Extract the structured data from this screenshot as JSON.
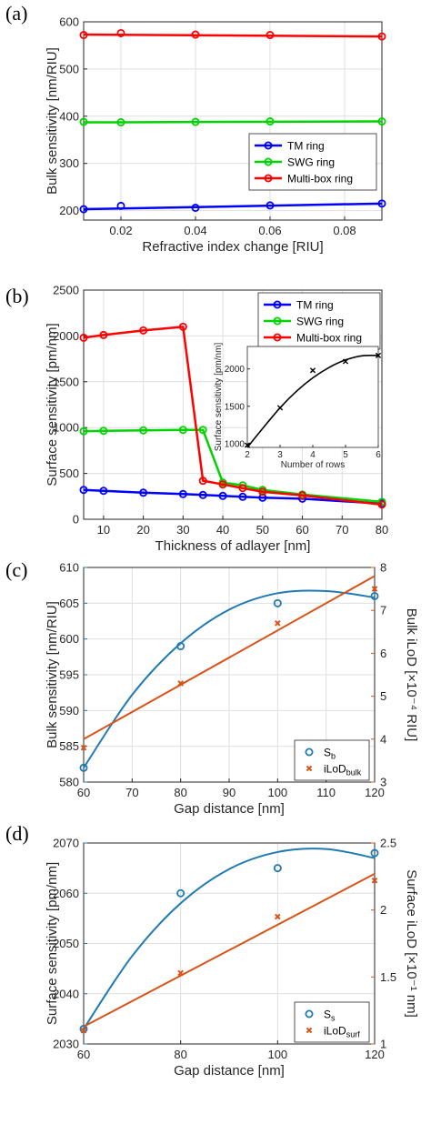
{
  "figure": {
    "panels": [
      "(a)",
      "(b)",
      "(c)",
      "(d)"
    ]
  },
  "chart_data": [
    {
      "id": "a",
      "type": "line",
      "xlabel": "Refractive index change [RIU]",
      "ylabel": "Bulk sensitivity [nm/RIU]",
      "xlim": [
        0.01,
        0.09
      ],
      "ylim": [
        180,
        600
      ],
      "xticks": [
        0.02,
        0.04,
        0.06,
        0.08
      ],
      "xtick_labels": [
        "0.02",
        "0.04",
        "0.06",
        "0.08"
      ],
      "yticks": [
        200,
        300,
        400,
        500,
        600
      ],
      "ytick_labels": [
        "200",
        "300",
        "400",
        "500",
        "600"
      ],
      "legend_position": "lower-right",
      "series": [
        {
          "name": "TM ring",
          "color": "#0000ff",
          "x": [
            0.01,
            0.02,
            0.04,
            0.06,
            0.09
          ],
          "values": [
            203,
            210,
            206,
            211,
            215
          ],
          "fit": [
            203,
            215
          ]
        },
        {
          "name": "SWG ring",
          "color": "#00d400",
          "x": [
            0.01,
            0.02,
            0.04,
            0.06,
            0.09
          ],
          "values": [
            388,
            387,
            388,
            389,
            389
          ],
          "fit": [
            387,
            389
          ]
        },
        {
          "name": "Multi-box ring",
          "color": "#ff0000",
          "x": [
            0.01,
            0.02,
            0.04,
            0.06,
            0.09
          ],
          "values": [
            572,
            576,
            573,
            572,
            569
          ],
          "fit": [
            573,
            569
          ]
        }
      ]
    },
    {
      "id": "b",
      "type": "line",
      "xlabel": "Thickness of adlayer [nm]",
      "ylabel": "Surface sensitivity [pm/nm]",
      "xlim": [
        5,
        80
      ],
      "ylim": [
        0,
        2500
      ],
      "xticks": [
        10,
        20,
        30,
        40,
        50,
        60,
        70,
        80
      ],
      "xtick_labels": [
        "10",
        "20",
        "30",
        "40",
        "50",
        "60",
        "70",
        "80"
      ],
      "yticks": [
        0,
        500,
        1000,
        1500,
        2000,
        2500
      ],
      "ytick_labels": [
        "0",
        "500",
        "1000",
        "1500",
        "2000",
        "2500"
      ],
      "legend_position": "top-right",
      "series": [
        {
          "name": "TM ring",
          "color": "#0000ff",
          "x": [
            5,
            10,
            20,
            30,
            35,
            40,
            45,
            50,
            60,
            80
          ],
          "values": [
            320,
            310,
            290,
            275,
            265,
            255,
            245,
            235,
            225,
            170
          ]
        },
        {
          "name": "SWG ring",
          "color": "#00d400",
          "x": [
            5,
            10,
            20,
            30,
            35,
            40,
            45,
            50,
            60,
            80
          ],
          "values": [
            960,
            965,
            970,
            975,
            975,
            400,
            370,
            320,
            270,
            190
          ]
        },
        {
          "name": "Multi-box ring",
          "color": "#ff0000",
          "x": [
            5,
            10,
            20,
            30,
            35,
            40,
            45,
            50,
            60,
            80
          ],
          "values": [
            1980,
            2010,
            2060,
            2100,
            420,
            380,
            340,
            300,
            260,
            160
          ]
        }
      ],
      "inset": {
        "type": "scatter",
        "xlabel": "Number of rows",
        "ylabel": "Surface sensitivity [pm/nm]",
        "xlim": [
          2,
          6
        ],
        "ylim": [
          950,
          2300
        ],
        "xticks": [
          2,
          3,
          4,
          5,
          6
        ],
        "xtick_labels": [
          "2",
          "3",
          "4",
          "5",
          "6"
        ],
        "yticks": [
          1000,
          1500,
          2000
        ],
        "ytick_labels": [
          "1000",
          "1500",
          "2000"
        ],
        "x": [
          2,
          3,
          4,
          5,
          6
        ],
        "values": [
          980,
          1480,
          1980,
          2100,
          2180
        ],
        "fit_curve": [
          [
            2,
            950
          ],
          [
            2.5,
            1220
          ],
          [
            3,
            1480
          ],
          [
            3.5,
            1700
          ],
          [
            4,
            1880
          ],
          [
            4.5,
            2020
          ],
          [
            5,
            2120
          ],
          [
            5.5,
            2175
          ],
          [
            6,
            2180
          ]
        ]
      }
    },
    {
      "id": "c",
      "type": "scatter",
      "xlabel": "Gap distance [nm]",
      "ylabel": "Bulk sensitivity [nm/RIU]",
      "ylabel_right": "Bulk iLoD [×10⁻⁴ RIU]",
      "xlim": [
        60,
        120
      ],
      "ylim": [
        580,
        610
      ],
      "ylim_right": [
        3,
        8
      ],
      "xticks": [
        60,
        70,
        80,
        90,
        100,
        110,
        120
      ],
      "xtick_labels": [
        "60",
        "70",
        "80",
        "90",
        "100",
        "110",
        "120"
      ],
      "yticks": [
        580,
        585,
        590,
        595,
        600,
        605,
        610
      ],
      "ytick_labels": [
        "580",
        "585",
        "590",
        "595",
        "600",
        "605",
        "610"
      ],
      "yticks_right": [
        3,
        4,
        5,
        6,
        7,
        8
      ],
      "ytick_labels_right": [
        "3",
        "4",
        "5",
        "6",
        "7",
        "8"
      ],
      "legend_position": "lower-right",
      "series": [
        {
          "name": "S",
          "name_sub": "b",
          "color": "#1f7ab4",
          "marker": "circle",
          "axis": "left",
          "x": [
            60,
            80,
            100,
            120
          ],
          "values": [
            582,
            599,
            605,
            606
          ],
          "fit_curve": [
            [
              60,
              582
            ],
            [
              70,
              592.2
            ],
            [
              80,
              599.4
            ],
            [
              90,
              604.1
            ],
            [
              100,
              606.4
            ],
            [
              110,
              606.7
            ],
            [
              120,
              605.8
            ]
          ]
        },
        {
          "name": "iLoD",
          "name_sub": "bulk",
          "color": "#d95319",
          "marker": "x",
          "axis": "right",
          "x": [
            60,
            80,
            100,
            120
          ],
          "values": [
            3.8,
            5.3,
            6.7,
            7.5
          ],
          "fit_curve": [
            [
              60,
              4.0
            ],
            [
              120,
              7.8
            ]
          ]
        }
      ]
    },
    {
      "id": "d",
      "type": "scatter",
      "xlabel": "Gap distance [nm]",
      "ylabel": "Surface sensitivity [pm/nm]",
      "ylabel_right": "Surface iLoD [×10⁻¹ nm]",
      "xlim": [
        60,
        120
      ],
      "ylim": [
        2030,
        2070
      ],
      "ylim_right": [
        1,
        2.5
      ],
      "xticks": [
        60,
        80,
        100,
        120
      ],
      "xtick_labels": [
        "60",
        "80",
        "100",
        "120"
      ],
      "yticks": [
        2030,
        2040,
        2050,
        2060,
        2070
      ],
      "ytick_labels": [
        "2030",
        "2040",
        "2050",
        "2060",
        "2070"
      ],
      "yticks_right": [
        1,
        1.5,
        2,
        2.5
      ],
      "ytick_labels_right": [
        "1",
        "1.5",
        "2",
        "2.5"
      ],
      "legend_position": "lower-right",
      "series": [
        {
          "name": "S",
          "name_sub": "s",
          "color": "#1f7ab4",
          "marker": "circle",
          "axis": "left",
          "x": [
            60,
            80,
            100,
            120
          ],
          "values": [
            2033,
            2060,
            2065,
            2068
          ],
          "fit_curve": [
            [
              60,
              2033
            ],
            [
              70,
              2047.5
            ],
            [
              80,
              2058
            ],
            [
              90,
              2064.8
            ],
            [
              100,
              2068.2
            ],
            [
              110,
              2068.8
            ],
            [
              120,
              2067
            ]
          ]
        },
        {
          "name": "iLoD",
          "name_sub": "surf",
          "color": "#d95319",
          "marker": "x",
          "axis": "right",
          "x": [
            60,
            80,
            100,
            120
          ],
          "values": [
            1.1,
            1.53,
            1.95,
            2.22
          ],
          "fit_curve": [
            [
              60,
              1.13
            ],
            [
              120,
              2.27
            ]
          ]
        }
      ]
    }
  ]
}
